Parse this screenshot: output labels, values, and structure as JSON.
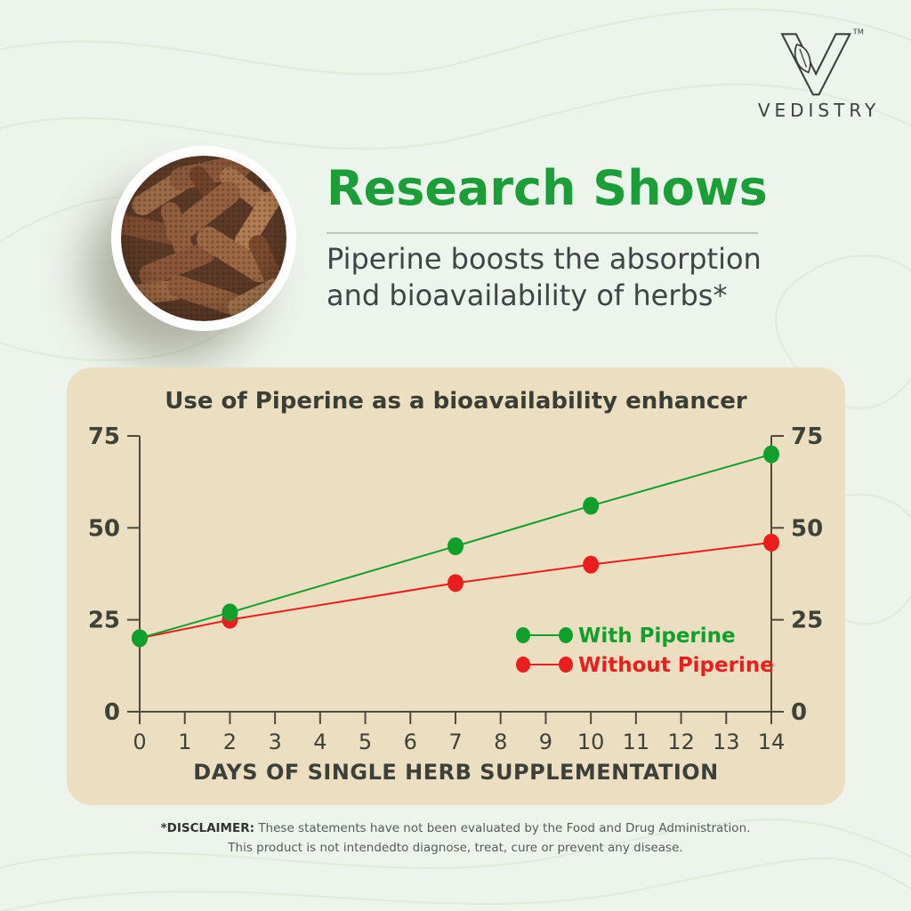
{
  "brand": {
    "name": "VEDISTRY",
    "trademark": "TM",
    "logo_color": "#3b3f3d"
  },
  "hero": {
    "heading": "Research Shows",
    "heading_color": "#1b9e38",
    "subheading_line1": "Piperine boosts the absorption",
    "subheading_line2": "and bioavailability of herbs*"
  },
  "panel": {
    "background_color": "#ecdfc1"
  },
  "chart_data": {
    "type": "line",
    "title": "Use of Piperine as a bioavailability enhancer",
    "xlabel": "DAYS OF SINGLE HERB SUPPLEMENTATION",
    "ylabel": "",
    "x": [
      0,
      2,
      7,
      10,
      14
    ],
    "x_ticks": [
      0,
      1,
      2,
      3,
      4,
      5,
      6,
      7,
      8,
      9,
      10,
      11,
      12,
      13,
      14
    ],
    "y_ticks": [
      0,
      25,
      50,
      75
    ],
    "xlim": [
      0,
      14
    ],
    "ylim": [
      0,
      75
    ],
    "grid": false,
    "axes": "left-right-bottom",
    "axis_color": "#4d4a3e",
    "tick_label_color": "#3e4238",
    "legend_position": "inside-lower-right",
    "series": [
      {
        "name": "With Piperine",
        "color": "#0fa02c",
        "values": [
          20,
          27,
          45,
          56,
          70
        ]
      },
      {
        "name": "Without Piperine",
        "color": "#ee1d1d",
        "values": [
          20,
          25,
          35,
          40,
          46
        ]
      }
    ]
  },
  "disclaimer": {
    "label": "*DISCLAIMER:",
    "line1": "These statements have not been evaluated by the Food and Drug Administration.",
    "line2": "This product is not intendedto diagnose, treat, cure or prevent any disease."
  }
}
